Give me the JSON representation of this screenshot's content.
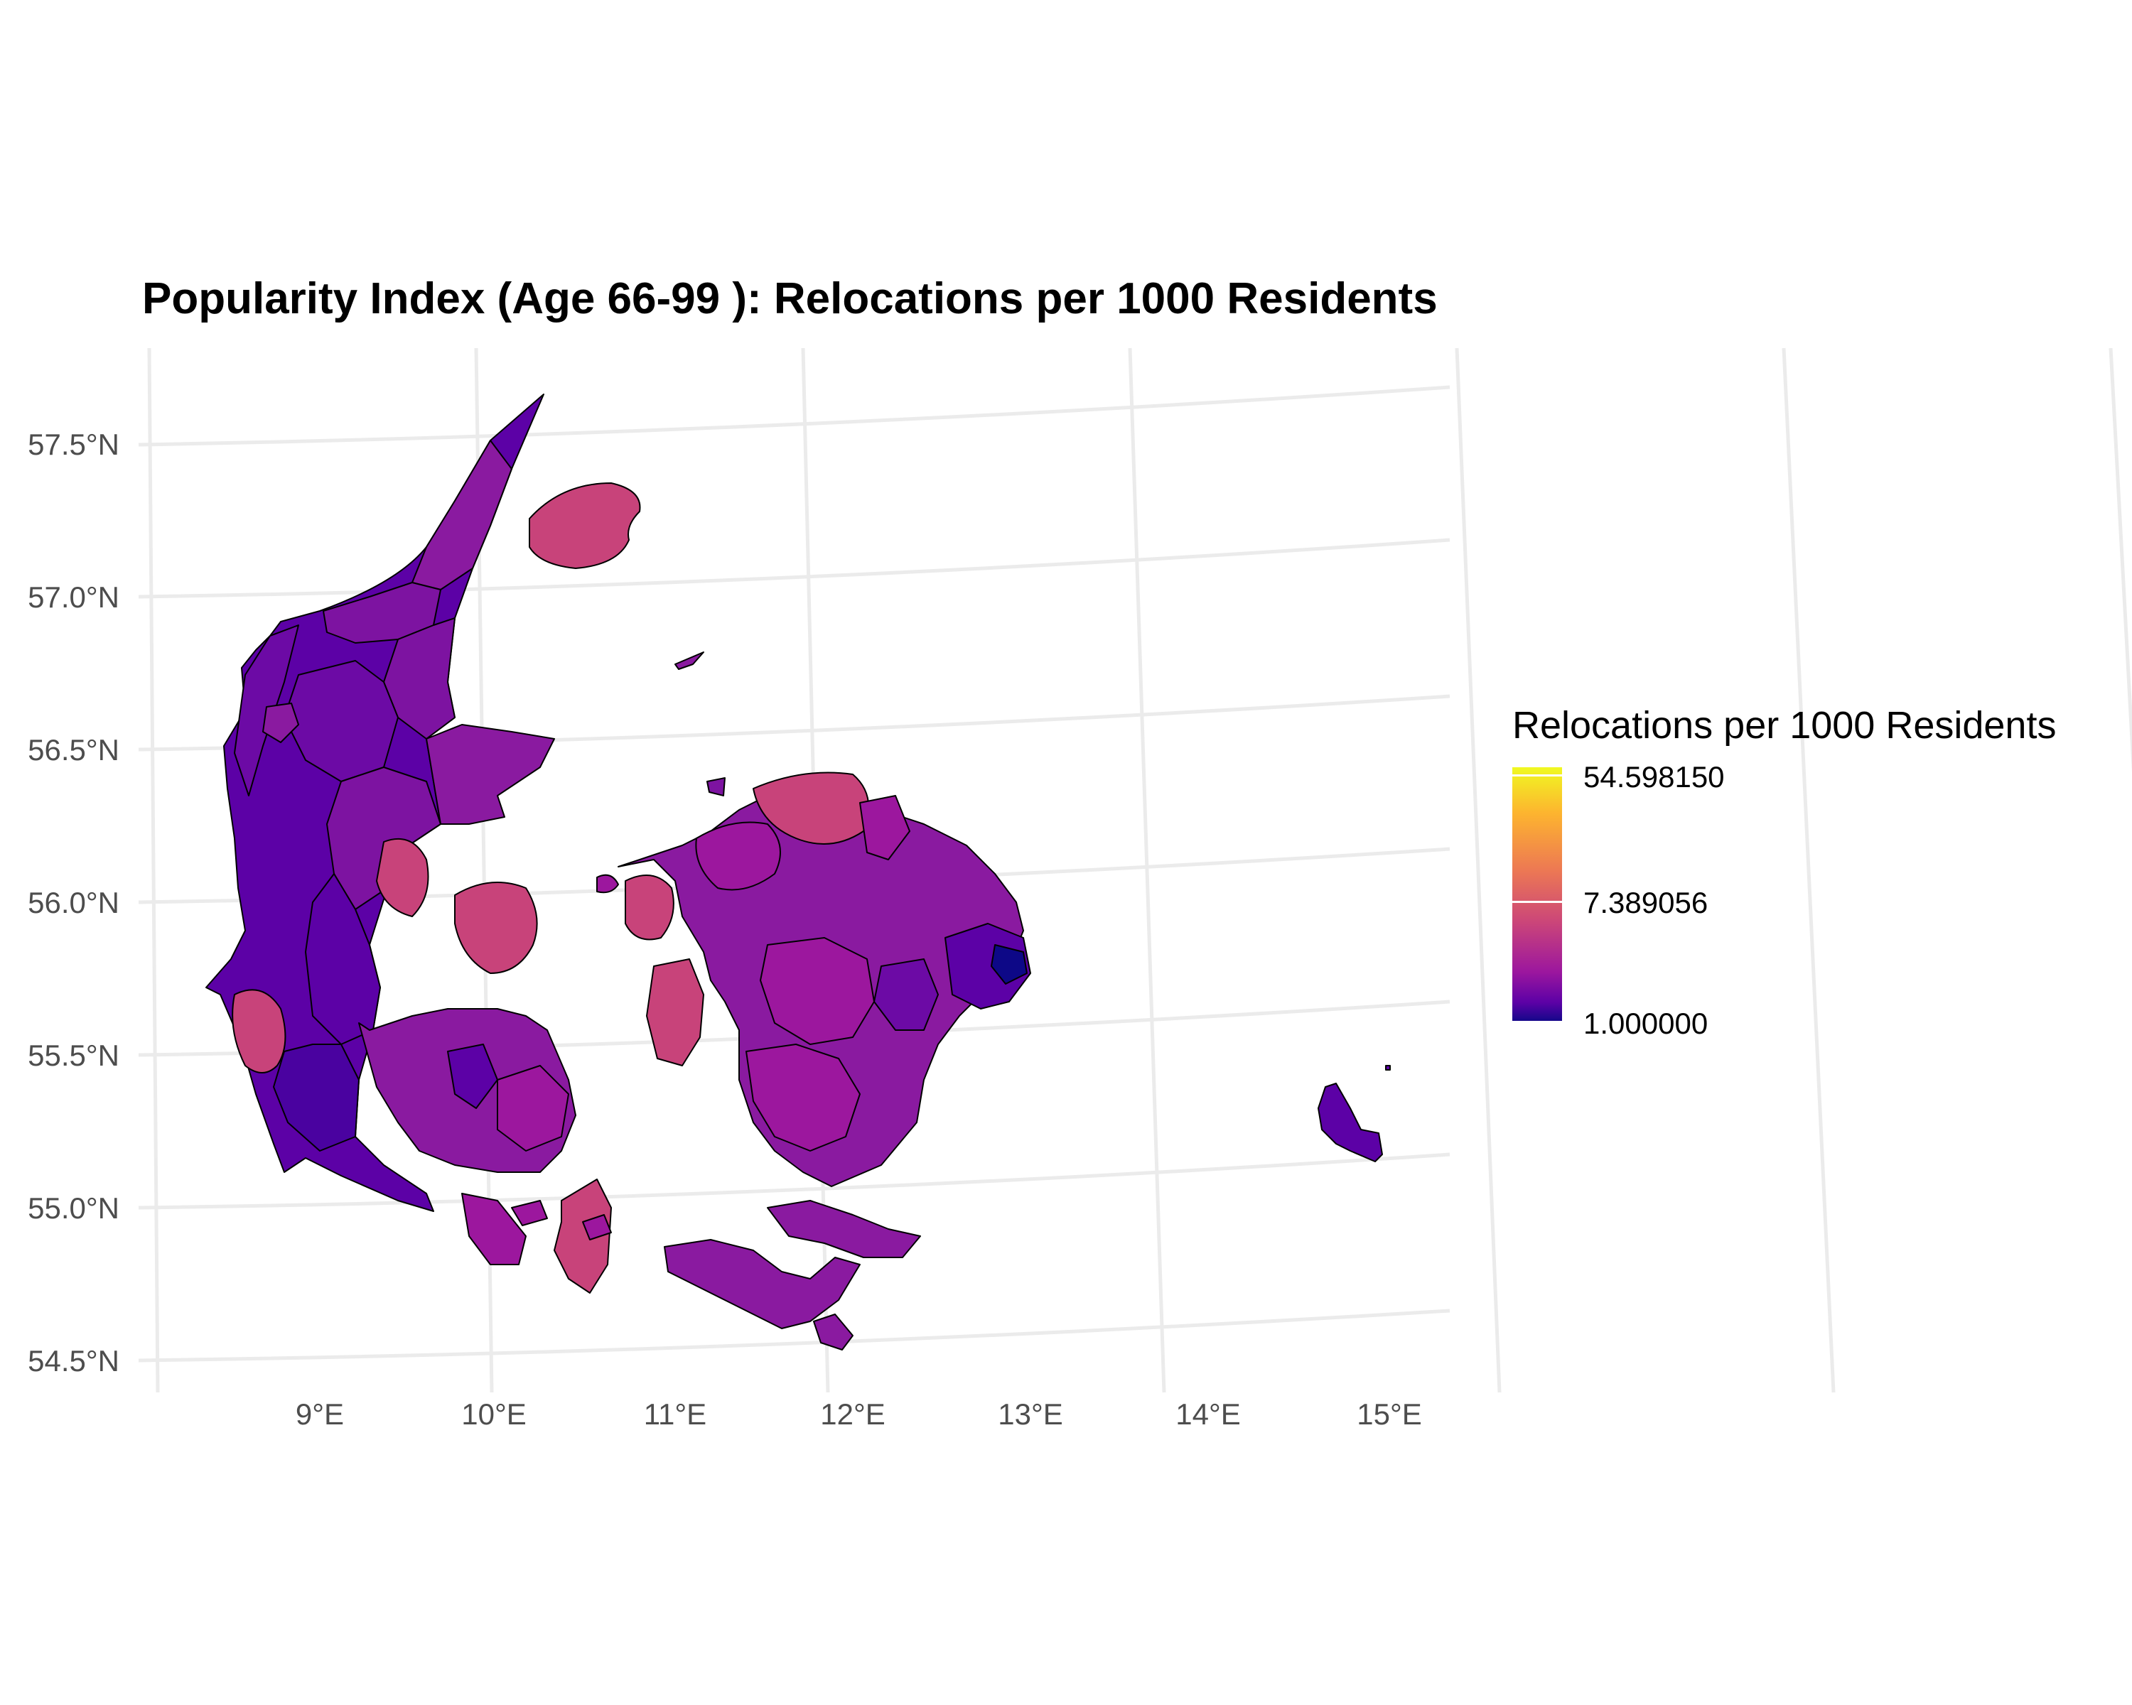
{
  "title": "Popularity Index (Age 66-99 ): Relocations per 1000 Residents",
  "axes": {
    "x_ticks": [
      "9°E",
      "10°E",
      "11°E",
      "12°E",
      "13°E",
      "14°E",
      "15°E"
    ],
    "y_ticks": [
      "57.5°N",
      "57.0°N",
      "56.5°N",
      "56.0°N",
      "55.5°N",
      "55.0°N",
      "54.5°N"
    ],
    "grid": true
  },
  "legend": {
    "title": "Relocations per 1000 Residents",
    "labels": [
      "54.598150",
      "7.389056",
      "1.000000"
    ],
    "palette": [
      "#0d0887",
      "#5c01a6",
      "#9c179e",
      "#cc4778",
      "#ed7953",
      "#fdb42f",
      "#f0f921"
    ],
    "scale": "log",
    "position": "right"
  },
  "colors": {
    "low": "#5c01a6",
    "mid": "#8a1aa0",
    "high": "#c8437a",
    "outline": "#000000",
    "grid": "#ebebeb"
  }
}
